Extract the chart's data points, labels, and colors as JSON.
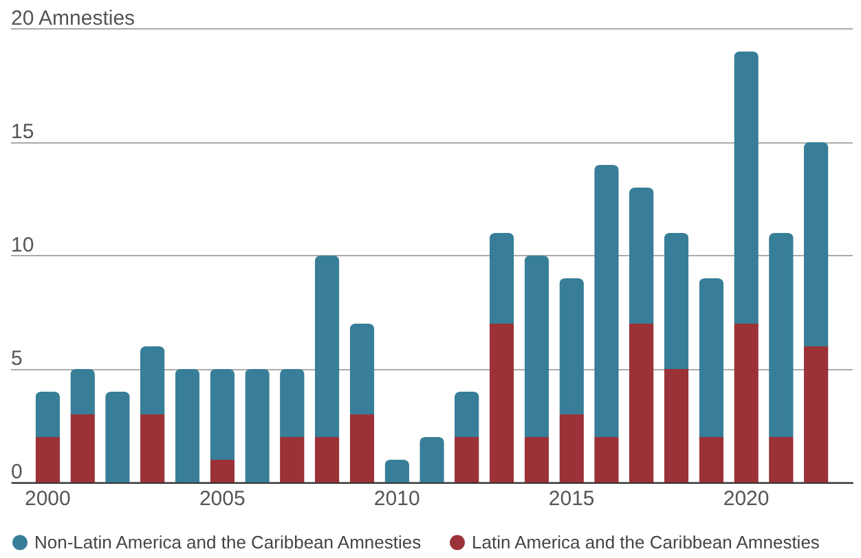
{
  "chart_data": {
    "type": "bar",
    "stacked": true,
    "categories": [
      "2000",
      null,
      null,
      null,
      null,
      "2005",
      null,
      null,
      null,
      null,
      "2010",
      null,
      null,
      null,
      null,
      "2015",
      null,
      null,
      null,
      null,
      "2020",
      null,
      null
    ],
    "series": [
      {
        "name": "Latin America and the Caribbean Amnesties",
        "color": "#9b3237",
        "values": [
          2,
          3,
          0,
          3,
          0,
          1,
          0,
          2,
          2,
          3,
          0,
          0,
          2,
          7,
          2,
          3,
          2,
          7,
          5,
          2,
          7,
          2,
          6
        ]
      },
      {
        "name": "Non-Latin America and the Caribbean Amnesties",
        "color": "#387e98",
        "values": [
          2,
          2,
          4,
          3,
          5,
          4,
          5,
          3,
          8,
          4,
          1,
          2,
          2,
          4,
          8,
          6,
          12,
          6,
          6,
          7,
          12,
          9,
          9
        ]
      }
    ],
    "ylim": [
      0,
      20
    ],
    "yticks": [
      0,
      5,
      10,
      15,
      {
        "value": 20,
        "label": "20 Amnesties"
      }
    ],
    "grid": "y",
    "legend": "bottom"
  }
}
